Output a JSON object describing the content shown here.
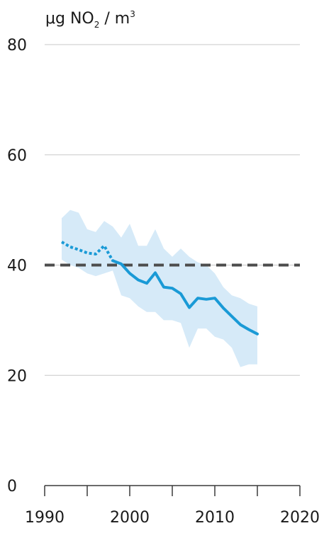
{
  "chart_data": {
    "type": "line",
    "unit_label": {
      "prefix": "μg NO",
      "subscript": "2",
      "middle": " / m",
      "superscript": "3"
    },
    "xlim": [
      1990,
      2020
    ],
    "ylim": [
      0,
      80
    ],
    "x_ticks": [
      1990,
      1995,
      2000,
      2005,
      2010,
      2015,
      2020
    ],
    "x_tick_labels": [
      "1990",
      "2000",
      "2010",
      "2020"
    ],
    "x_tick_label_values": [
      1990,
      2000,
      2010,
      2020
    ],
    "y_ticks": [
      0,
      20,
      40,
      60,
      80
    ],
    "y_tick_labels": [
      "0",
      "20",
      "40",
      "60",
      "80"
    ],
    "grid": true,
    "reference_line": {
      "y": 40,
      "style": "dashed",
      "color": "#4d4d4d"
    },
    "band": {
      "color": "#d6eaf8",
      "x": [
        1992,
        1993,
        1994,
        1995,
        1996,
        1997,
        1998,
        1999,
        2000,
        2001,
        2002,
        2003,
        2004,
        2005,
        2006,
        2007,
        2008,
        2009,
        2010,
        2011,
        2012,
        2013,
        2014,
        2015
      ],
      "upper": [
        48.5,
        50,
        49.5,
        46.5,
        46,
        48,
        47,
        45,
        47.5,
        43.5,
        43.5,
        46.5,
        43,
        41.5,
        43,
        41.5,
        40.5,
        40,
        38.5,
        36,
        34.5,
        34,
        33,
        32.5
      ],
      "lower": [
        41,
        40,
        39.5,
        38.5,
        38,
        38.5,
        39,
        34.5,
        34,
        32.5,
        31.5,
        31.5,
        30,
        30,
        29.5,
        25,
        28.5,
        28.5,
        27,
        26.5,
        25,
        21.5,
        22,
        22
      ]
    },
    "series": [
      {
        "style": "dotted",
        "color": "#1a9ad6",
        "x": [
          1992,
          1993,
          1994,
          1995,
          1996,
          1997,
          1998
        ],
        "y": [
          44.2,
          43.3,
          42.8,
          42.2,
          42,
          43.5,
          40.8
        ]
      },
      {
        "style": "solid",
        "color": "#1a9ad6",
        "x": [
          1998,
          1999,
          2000,
          2001,
          2002,
          2003,
          2004,
          2005,
          2006,
          2007,
          2008,
          2009,
          2010,
          2011,
          2012,
          2013,
          2014,
          2015
        ],
        "y": [
          40.8,
          40.2,
          38.5,
          37.3,
          36.7,
          38.6,
          36,
          35.8,
          34.8,
          32.3,
          34,
          33.8,
          34,
          32.2,
          30.7,
          29.2,
          28.3,
          27.5
        ]
      }
    ]
  }
}
